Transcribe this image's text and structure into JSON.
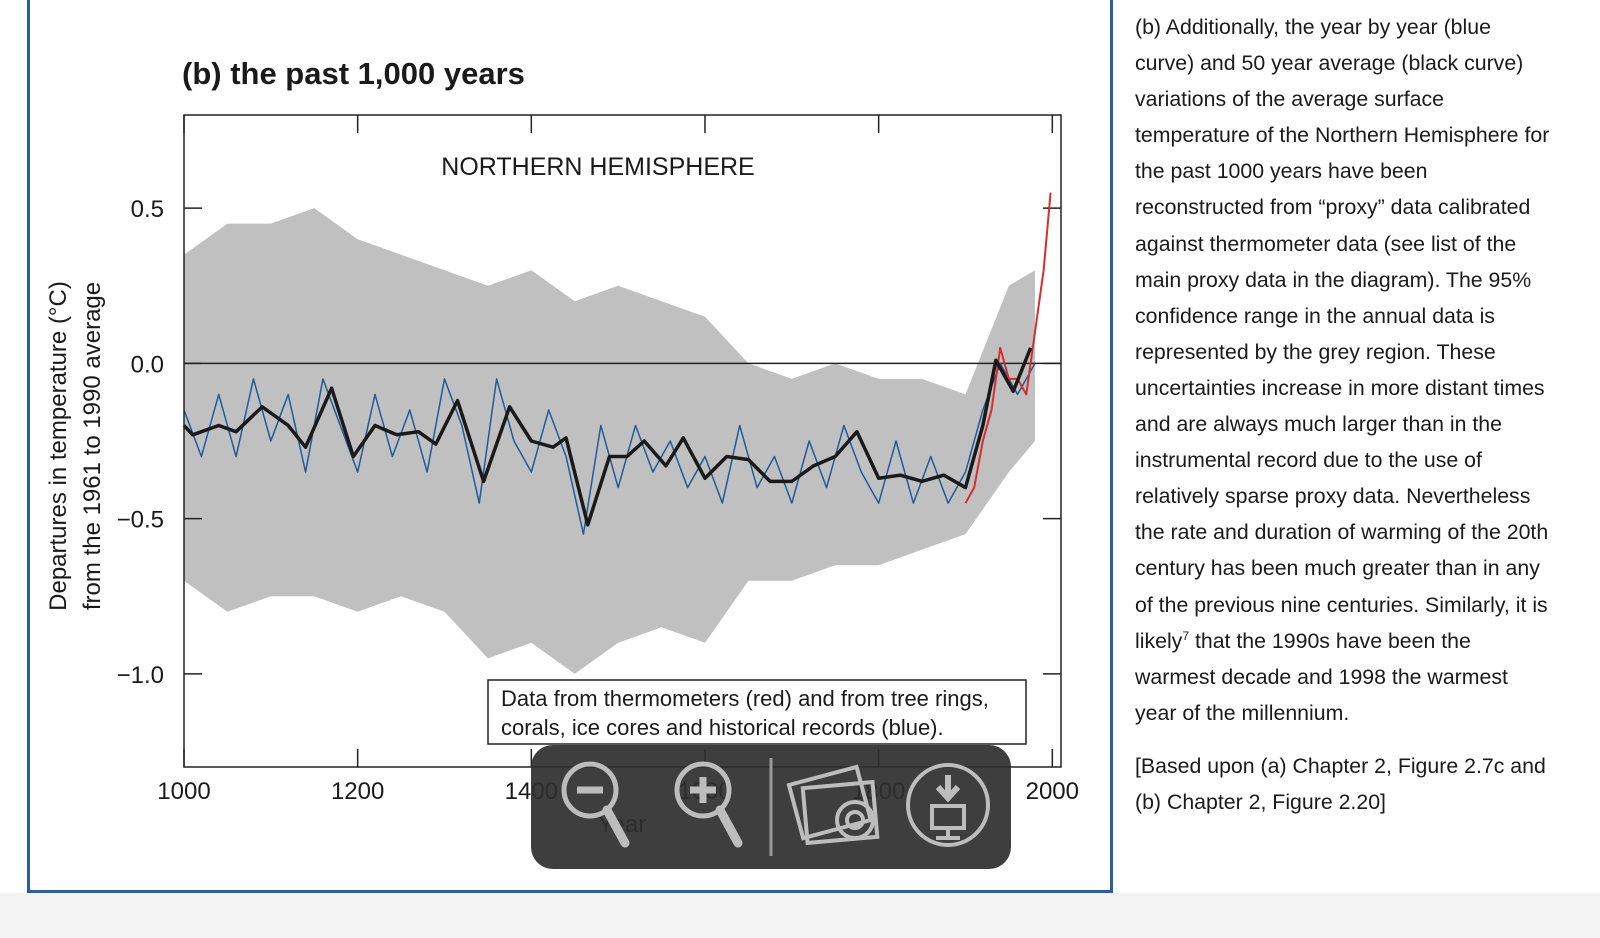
{
  "chart_data": {
    "type": "line",
    "title": "(b) the past 1,000 years",
    "panel_label": "NORTHERN HEMISPHERE",
    "xlabel": "Year",
    "ylabel": [
      "Departures in temperature (°C)",
      "from the 1961 to 1990 average"
    ],
    "annotations": [
      "Data from thermometers (red) and from tree rings,",
      "corals, ice cores and historical records (blue)."
    ],
    "xlim": [
      1000,
      2010
    ],
    "ylim": [
      -1.3,
      0.8
    ],
    "xticks": [
      1000,
      1200,
      1400,
      1600,
      1800,
      2000
    ],
    "yticks": [
      {
        "value": -1.0,
        "label": "−1.0"
      },
      {
        "value": -0.5,
        "label": "−0.5"
      },
      {
        "value": 0,
        "label": "0.0"
      },
      0.5
    ],
    "band": {
      "color": "#c0c0c0",
      "x": [
        1000,
        1050,
        1100,
        1150,
        1200,
        1250,
        1300,
        1350,
        1400,
        1450,
        1500,
        1550,
        1600,
        1650,
        1700,
        1750,
        1800,
        1850,
        1900,
        1950,
        1980
      ],
      "upper": [
        0.35,
        0.45,
        0.45,
        0.5,
        0.4,
        0.35,
        0.3,
        0.25,
        0.3,
        0.2,
        0.25,
        0.2,
        0.15,
        0.0,
        -0.05,
        0.0,
        -0.05,
        -0.05,
        -0.1,
        0.25,
        0.3
      ],
      "lower": [
        -0.7,
        -0.8,
        -0.75,
        -0.75,
        -0.8,
        -0.75,
        -0.8,
        -0.95,
        -0.9,
        -1.0,
        -0.9,
        -0.85,
        -0.9,
        -0.7,
        -0.7,
        -0.65,
        -0.65,
        -0.6,
        -0.55,
        -0.35,
        -0.25
      ]
    },
    "series": [
      {
        "color": "#1f5a9c",
        "width": 1.5,
        "x": [
          1000,
          1020,
          1040,
          1060,
          1080,
          1100,
          1120,
          1140,
          1160,
          1180,
          1200,
          1220,
          1240,
          1260,
          1280,
          1300,
          1320,
          1340,
          1360,
          1380,
          1400,
          1420,
          1440,
          1460,
          1480,
          1500,
          1520,
          1540,
          1560,
          1580,
          1600,
          1620,
          1640,
          1660,
          1680,
          1700,
          1720,
          1740,
          1760,
          1780,
          1800,
          1820,
          1840,
          1860,
          1880,
          1900,
          1920,
          1940,
          1960,
          1980
        ],
        "values": [
          -0.15,
          -0.3,
          -0.1,
          -0.3,
          -0.05,
          -0.25,
          -0.1,
          -0.35,
          -0.05,
          -0.2,
          -0.35,
          -0.1,
          -0.3,
          -0.15,
          -0.35,
          -0.05,
          -0.2,
          -0.45,
          -0.05,
          -0.25,
          -0.35,
          -0.15,
          -0.3,
          -0.55,
          -0.2,
          -0.4,
          -0.2,
          -0.35,
          -0.25,
          -0.4,
          -0.3,
          -0.45,
          -0.2,
          -0.4,
          -0.3,
          -0.45,
          -0.25,
          -0.4,
          -0.2,
          -0.35,
          -0.45,
          -0.25,
          -0.45,
          -0.3,
          -0.45,
          -0.35,
          -0.15,
          0.0,
          -0.1,
          0.0
        ]
      },
      {
        "color": "#d62d2d",
        "width": 2,
        "x": [
          1900,
          1910,
          1920,
          1930,
          1940,
          1950,
          1960,
          1970,
          1980,
          1990,
          1998
        ],
        "values": [
          -0.45,
          -0.4,
          -0.25,
          -0.15,
          0.05,
          -0.05,
          -0.05,
          -0.1,
          0.1,
          0.3,
          0.55
        ]
      },
      {
        "color": "#1a1a1a",
        "width": 3.5,
        "x": [
          1000,
          1010,
          1040,
          1060,
          1090,
          1120,
          1140,
          1170,
          1195,
          1220,
          1245,
          1270,
          1290,
          1315,
          1345,
          1375,
          1400,
          1425,
          1440,
          1465,
          1490,
          1510,
          1530,
          1555,
          1575,
          1600,
          1625,
          1650,
          1675,
          1700,
          1725,
          1750,
          1775,
          1800,
          1825,
          1850,
          1875,
          1900,
          1920,
          1935,
          1955,
          1975
        ],
        "values": [
          -0.2,
          -0.23,
          -0.2,
          -0.22,
          -0.14,
          -0.2,
          -0.27,
          -0.08,
          -0.3,
          -0.2,
          -0.23,
          -0.22,
          -0.26,
          -0.12,
          -0.38,
          -0.14,
          -0.25,
          -0.27,
          -0.24,
          -0.52,
          -0.3,
          -0.3,
          -0.25,
          -0.33,
          -0.24,
          -0.37,
          -0.3,
          -0.31,
          -0.38,
          -0.38,
          -0.33,
          -0.3,
          -0.22,
          -0.37,
          -0.36,
          -0.38,
          -0.36,
          -0.4,
          -0.2,
          0.01,
          -0.09,
          0.05
        ]
      }
    ]
  },
  "sidebar": {
    "paragraph": [
      "(b) Additionally, the year by year (blue curve) and 50 year average (black curve) variations of the average surface temperature of the Northern Hemisphere for the past 1000 years have been reconstructed from “proxy” data calibrated against thermometer data (see list of the main proxy data in the diagram). The 95% confidence range in the annual data is represented by the grey region. These uncertainties increase in more distant times and are always much larger than in the instrumental record due to the use of relatively sparse proxy data. Nevertheless the rate and duration of warming of the 20th century has been much greater than in any of the previous nine centuries. Similarly, it is likely",
      "7",
      " that the 1990s have been the warmest decade and 1998 the warmest year of the millennium."
    ],
    "source": "[Based upon (a) Chapter 2, Figure 2.7c and (b) Chapter 2, Figure 2.20]"
  }
}
